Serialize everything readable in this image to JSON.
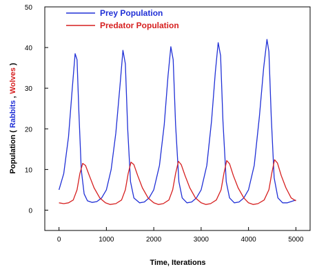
{
  "chart_data": {
    "type": "line",
    "xlabel": "Time, Iterations",
    "ylabel": {
      "prefix": "Population (",
      "part1": "Rabbits",
      "sep": " , ",
      "part2": "Wolves",
      "suffix": " )"
    },
    "xlim": [
      -300,
      5300
    ],
    "ylim": [
      -5,
      50
    ],
    "x_ticks": [
      0,
      1000,
      2000,
      3000,
      4000,
      5000
    ],
    "y_ticks": [
      0,
      10,
      20,
      30,
      40,
      50
    ],
    "legend_placement": "top-left",
    "series": [
      {
        "name": "Prey Population",
        "color": "#1f2fd6",
        "points": [
          [
            0,
            5
          ],
          [
            100,
            9
          ],
          [
            200,
            18
          ],
          [
            280,
            30
          ],
          [
            340,
            38.5
          ],
          [
            380,
            37
          ],
          [
            420,
            24
          ],
          [
            470,
            10
          ],
          [
            530,
            4
          ],
          [
            600,
            2.3
          ],
          [
            700,
            1.9
          ],
          [
            800,
            2.1
          ],
          [
            900,
            3
          ],
          [
            1000,
            5
          ],
          [
            1100,
            10
          ],
          [
            1200,
            19
          ],
          [
            1290,
            31
          ],
          [
            1350,
            39.3
          ],
          [
            1400,
            36
          ],
          [
            1450,
            20
          ],
          [
            1510,
            7
          ],
          [
            1580,
            3
          ],
          [
            1700,
            1.8
          ],
          [
            1800,
            2
          ],
          [
            1900,
            3
          ],
          [
            2000,
            5
          ],
          [
            2120,
            11
          ],
          [
            2220,
            21
          ],
          [
            2300,
            33
          ],
          [
            2360,
            40.2
          ],
          [
            2410,
            37
          ],
          [
            2460,
            21
          ],
          [
            2530,
            7
          ],
          [
            2600,
            3
          ],
          [
            2700,
            1.8
          ],
          [
            2800,
            2
          ],
          [
            2900,
            3
          ],
          [
            3000,
            5
          ],
          [
            3120,
            11
          ],
          [
            3220,
            22
          ],
          [
            3300,
            34
          ],
          [
            3360,
            41.2
          ],
          [
            3410,
            38
          ],
          [
            3460,
            22
          ],
          [
            3530,
            7
          ],
          [
            3600,
            3
          ],
          [
            3700,
            1.8
          ],
          [
            3800,
            2
          ],
          [
            3900,
            3
          ],
          [
            4000,
            5
          ],
          [
            4120,
            11
          ],
          [
            4230,
            23
          ],
          [
            4320,
            35
          ],
          [
            4390,
            42
          ],
          [
            4430,
            39
          ],
          [
            4480,
            23
          ],
          [
            4540,
            8
          ],
          [
            4620,
            3
          ],
          [
            4720,
            1.8
          ],
          [
            4820,
            1.8
          ],
          [
            4920,
            2.2
          ],
          [
            5000,
            2.5
          ]
        ]
      },
      {
        "name": "Predator Population",
        "color": "#d61f1f",
        "points": [
          [
            0,
            1.8
          ],
          [
            100,
            1.6
          ],
          [
            200,
            1.8
          ],
          [
            300,
            2.5
          ],
          [
            380,
            5
          ],
          [
            440,
            9
          ],
          [
            500,
            11.5
          ],
          [
            560,
            11
          ],
          [
            640,
            8.5
          ],
          [
            740,
            5.5
          ],
          [
            860,
            3
          ],
          [
            980,
            1.8
          ],
          [
            1080,
            1.4
          ],
          [
            1200,
            1.6
          ],
          [
            1320,
            2.5
          ],
          [
            1400,
            5
          ],
          [
            1460,
            9
          ],
          [
            1520,
            11.8
          ],
          [
            1580,
            11.2
          ],
          [
            1660,
            8.5
          ],
          [
            1760,
            5.5
          ],
          [
            1880,
            3
          ],
          [
            2000,
            1.8
          ],
          [
            2100,
            1.4
          ],
          [
            2200,
            1.6
          ],
          [
            2320,
            2.5
          ],
          [
            2400,
            5
          ],
          [
            2460,
            9
          ],
          [
            2520,
            12
          ],
          [
            2580,
            11.2
          ],
          [
            2660,
            8.5
          ],
          [
            2760,
            5.5
          ],
          [
            2880,
            3
          ],
          [
            3000,
            1.8
          ],
          [
            3100,
            1.4
          ],
          [
            3200,
            1.6
          ],
          [
            3320,
            2.5
          ],
          [
            3420,
            5
          ],
          [
            3480,
            9
          ],
          [
            3540,
            12.2
          ],
          [
            3600,
            11.4
          ],
          [
            3680,
            8.5
          ],
          [
            3780,
            5.5
          ],
          [
            3900,
            3
          ],
          [
            4000,
            1.8
          ],
          [
            4100,
            1.4
          ],
          [
            4200,
            1.6
          ],
          [
            4330,
            2.5
          ],
          [
            4430,
            5
          ],
          [
            4490,
            9
          ],
          [
            4550,
            12.4
          ],
          [
            4610,
            11.6
          ],
          [
            4690,
            8.5
          ],
          [
            4790,
            5.5
          ],
          [
            4900,
            3
          ],
          [
            5000,
            2.3
          ]
        ]
      }
    ]
  }
}
